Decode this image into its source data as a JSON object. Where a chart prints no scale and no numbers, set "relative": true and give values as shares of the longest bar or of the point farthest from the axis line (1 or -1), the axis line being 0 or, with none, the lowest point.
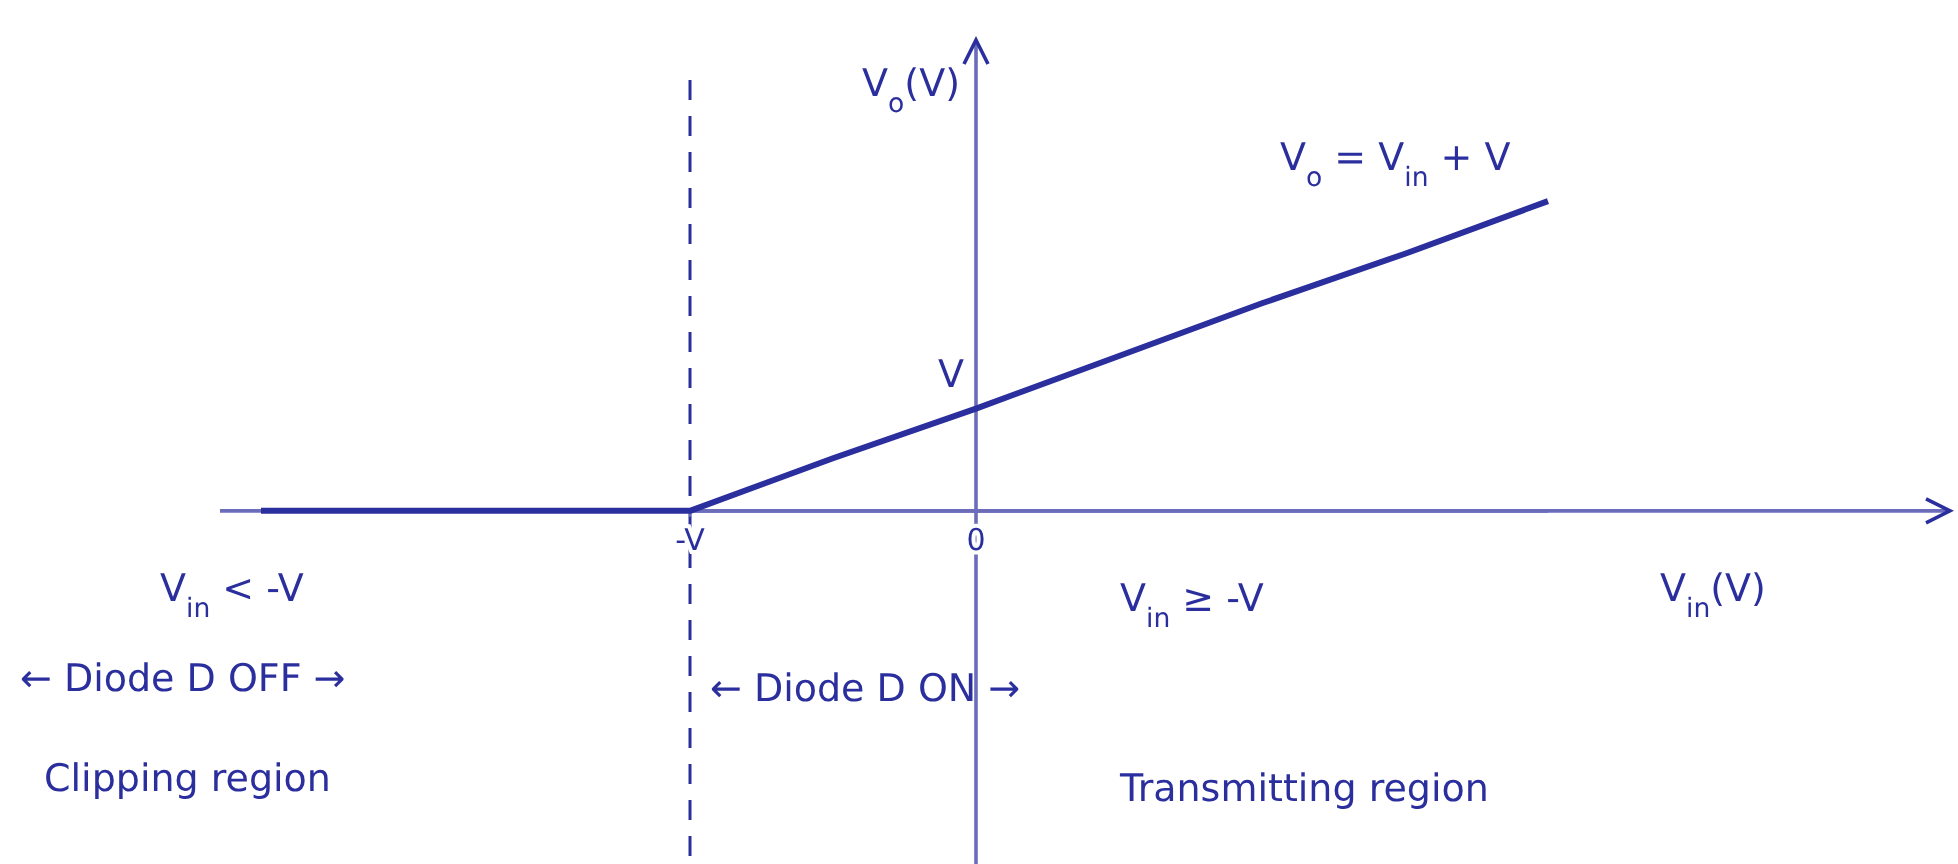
{
  "chart_data": {
    "type": "line",
    "xlabel": "V$_{in}$(V)",
    "ylabel": "V$_{o}$(V)",
    "relative": true,
    "categories": [
      null,
      null,
      null,
      "-V",
      null,
      "0",
      null,
      null,
      null,
      null
    ],
    "series": [
      {
        "color": "#2b2f9e",
        "values": [
          0,
          0,
          0,
          0,
          0.17,
          0.33,
          0.5,
          0.67,
          0.83,
          1
        ]
      }
    ],
    "ref_lines": [
      {
        "axis": "x",
        "value": "-V",
        "line_style": "dashed",
        "color": "#2b2f9e"
      }
    ],
    "annotations": [
      "V$_{o}$ = V$_{in}$ + V",
      "V$_{in}$ < -V",
      "← Diode D OFF →",
      "Clipping region",
      "V$_{in}$ ≥ -V",
      "← Diode D ON →",
      "Transmitting region",
      "V"
    ],
    "grid": false
  }
}
